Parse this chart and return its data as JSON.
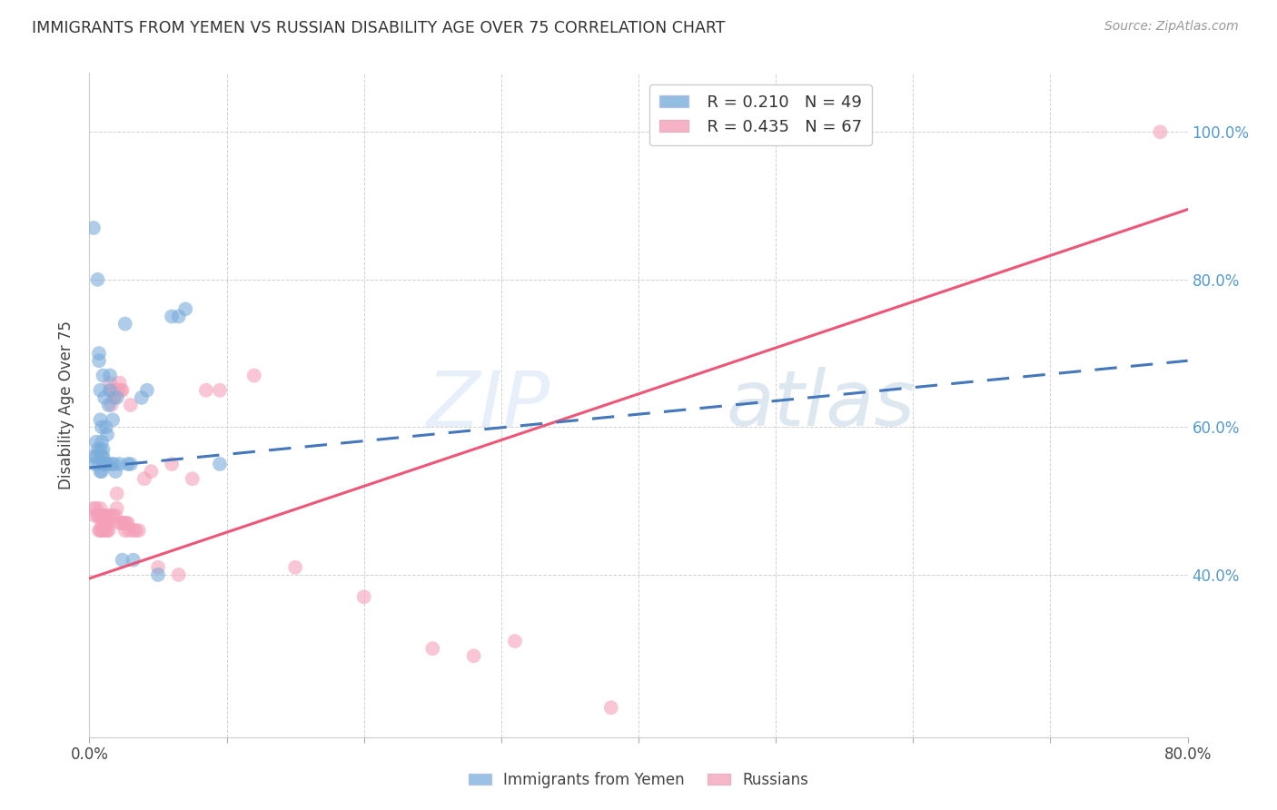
{
  "title": "IMMIGRANTS FROM YEMEN VS RUSSIAN DISABILITY AGE OVER 75 CORRELATION CHART",
  "source": "Source: ZipAtlas.com",
  "ylabel": "Disability Age Over 75",
  "legend_blue_r": "R = 0.210",
  "legend_blue_n": "N = 49",
  "legend_pink_r": "R = 0.435",
  "legend_pink_n": "N = 67",
  "blue_color": "#7AADDB",
  "pink_color": "#F4A0B8",
  "blue_line_color": "#4477BB",
  "pink_line_color": "#EE5577",
  "xlim": [
    0.0,
    0.8
  ],
  "ylim": [
    0.18,
    1.08
  ],
  "right_ytick_vals": [
    0.4,
    0.6,
    0.8,
    1.0
  ],
  "right_ytick_labels": [
    "40.0%",
    "60.0%",
    "80.0%",
    "100.0%"
  ],
  "blue_scatter_x": [
    0.003,
    0.003,
    0.004,
    0.005,
    0.005,
    0.006,
    0.006,
    0.007,
    0.007,
    0.007,
    0.008,
    0.008,
    0.008,
    0.008,
    0.009,
    0.009,
    0.009,
    0.009,
    0.01,
    0.01,
    0.01,
    0.01,
    0.011,
    0.011,
    0.012,
    0.012,
    0.013,
    0.013,
    0.014,
    0.015,
    0.015,
    0.016,
    0.017,
    0.018,
    0.019,
    0.02,
    0.022,
    0.024,
    0.026,
    0.028,
    0.03,
    0.032,
    0.038,
    0.042,
    0.05,
    0.06,
    0.065,
    0.07,
    0.095
  ],
  "blue_scatter_y": [
    0.87,
    0.56,
    0.55,
    0.58,
    0.56,
    0.8,
    0.57,
    0.7,
    0.69,
    0.55,
    0.54,
    0.57,
    0.61,
    0.65,
    0.54,
    0.56,
    0.58,
    0.6,
    0.55,
    0.56,
    0.57,
    0.67,
    0.55,
    0.64,
    0.55,
    0.6,
    0.55,
    0.59,
    0.63,
    0.65,
    0.67,
    0.55,
    0.61,
    0.55,
    0.54,
    0.64,
    0.55,
    0.42,
    0.74,
    0.55,
    0.55,
    0.42,
    0.64,
    0.65,
    0.4,
    0.75,
    0.75,
    0.76,
    0.55
  ],
  "pink_scatter_x": [
    0.003,
    0.004,
    0.005,
    0.006,
    0.007,
    0.007,
    0.008,
    0.008,
    0.009,
    0.009,
    0.009,
    0.01,
    0.01,
    0.01,
    0.011,
    0.011,
    0.012,
    0.012,
    0.012,
    0.013,
    0.013,
    0.013,
    0.014,
    0.014,
    0.015,
    0.015,
    0.016,
    0.016,
    0.017,
    0.018,
    0.018,
    0.019,
    0.019,
    0.02,
    0.02,
    0.021,
    0.022,
    0.022,
    0.023,
    0.023,
    0.024,
    0.025,
    0.025,
    0.026,
    0.027,
    0.028,
    0.029,
    0.03,
    0.032,
    0.034,
    0.036,
    0.04,
    0.045,
    0.05,
    0.06,
    0.065,
    0.075,
    0.085,
    0.095,
    0.12,
    0.15,
    0.2,
    0.25,
    0.28,
    0.31,
    0.38,
    0.78
  ],
  "pink_scatter_y": [
    0.49,
    0.48,
    0.49,
    0.48,
    0.48,
    0.46,
    0.49,
    0.46,
    0.48,
    0.47,
    0.46,
    0.47,
    0.48,
    0.46,
    0.47,
    0.48,
    0.47,
    0.46,
    0.48,
    0.48,
    0.46,
    0.47,
    0.47,
    0.46,
    0.66,
    0.48,
    0.65,
    0.63,
    0.48,
    0.64,
    0.64,
    0.48,
    0.65,
    0.49,
    0.51,
    0.65,
    0.66,
    0.47,
    0.47,
    0.65,
    0.65,
    0.47,
    0.47,
    0.46,
    0.47,
    0.47,
    0.46,
    0.63,
    0.46,
    0.46,
    0.46,
    0.53,
    0.54,
    0.41,
    0.55,
    0.4,
    0.53,
    0.65,
    0.65,
    0.67,
    0.41,
    0.37,
    0.3,
    0.29,
    0.31,
    0.22,
    1.0
  ],
  "blue_line_x0": 0.0,
  "blue_line_x1": 0.8,
  "blue_line_y0": 0.545,
  "blue_line_y1": 0.69,
  "pink_line_x0": 0.0,
  "pink_line_x1": 0.8,
  "pink_line_y0": 0.395,
  "pink_line_y1": 0.895
}
